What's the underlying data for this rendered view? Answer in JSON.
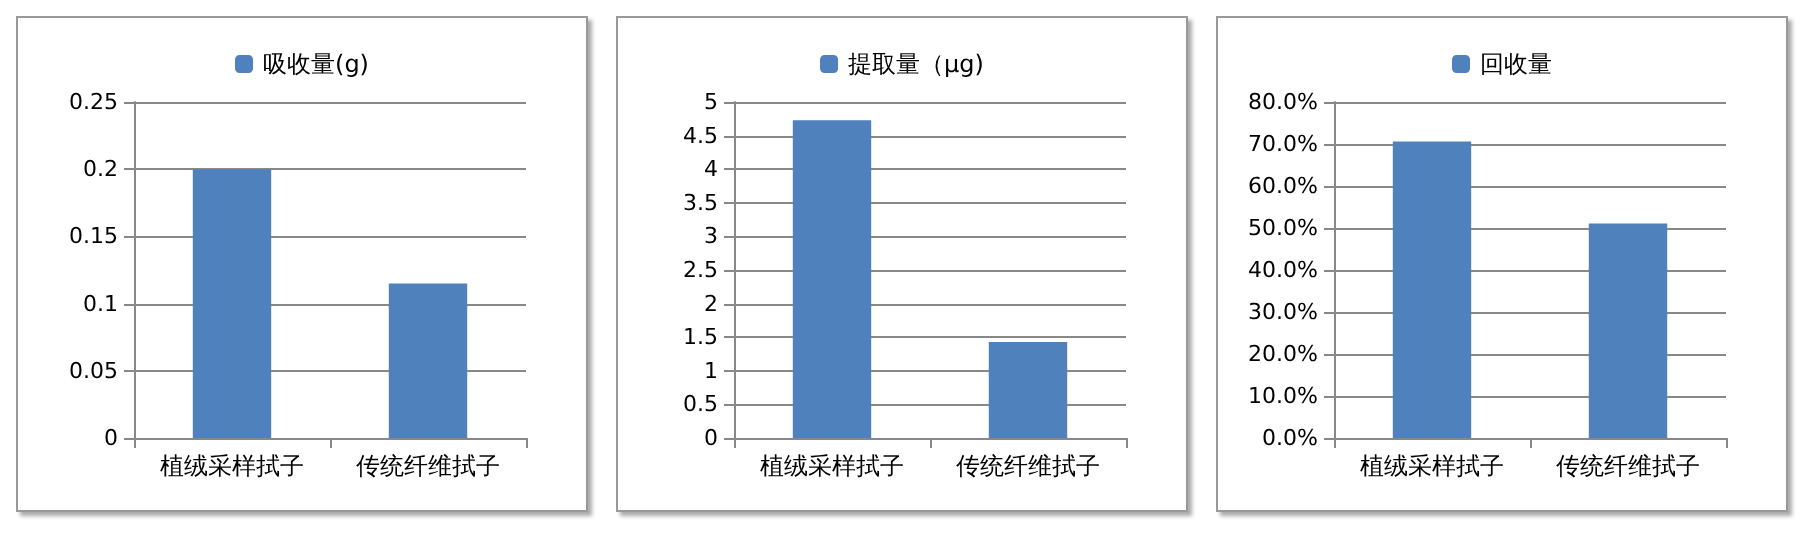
{
  "chart_data": [
    {
      "type": "bar",
      "categories": [
        "植绒采样拭子",
        "传统纤维拭子"
      ],
      "series": [
        {
          "name": "吸收量(g)",
          "color": "#4f81bd",
          "values": [
            0.2,
            0.115
          ]
        }
      ],
      "ylim": [
        0,
        0.25
      ],
      "yticks": [
        0,
        0.05,
        0.1,
        0.15,
        0.2,
        0.25
      ],
      "grid": "y",
      "legend": "top"
    },
    {
      "type": "bar",
      "categories": [
        "植绒采样拭子",
        "传统纤维拭子"
      ],
      "series": [
        {
          "name": "提取量（μg)",
          "color": "#4f81bd",
          "values": [
            4.73,
            1.43
          ]
        }
      ],
      "ylim": [
        0,
        5
      ],
      "yticks": [
        0,
        0.5,
        1,
        1.5,
        2,
        2.5,
        3,
        3.5,
        4,
        4.5,
        5
      ],
      "grid": "y",
      "legend": "top"
    },
    {
      "type": "bar",
      "categories": [
        "植绒采样拭子",
        "传统纤维拭子"
      ],
      "series": [
        {
          "name": "回收量",
          "color": "#4f81bd",
          "values": [
            70.6,
            51.1
          ]
        }
      ],
      "ylim": [
        0,
        80
      ],
      "yticks": [
        {
          "value": 0,
          "label": "0.0%"
        },
        {
          "value": 10,
          "label": "10.0%"
        },
        {
          "value": 20,
          "label": "20.0%"
        },
        {
          "value": 30,
          "label": "30.0%"
        },
        {
          "value": 40,
          "label": "40.0%"
        },
        {
          "value": 50,
          "label": "50.0%"
        },
        {
          "value": 60,
          "label": "60.0%"
        },
        {
          "value": 70,
          "label": "70.0%"
        },
        {
          "value": 80,
          "label": "80.0%"
        }
      ],
      "grid": "y",
      "legend": "top"
    }
  ]
}
